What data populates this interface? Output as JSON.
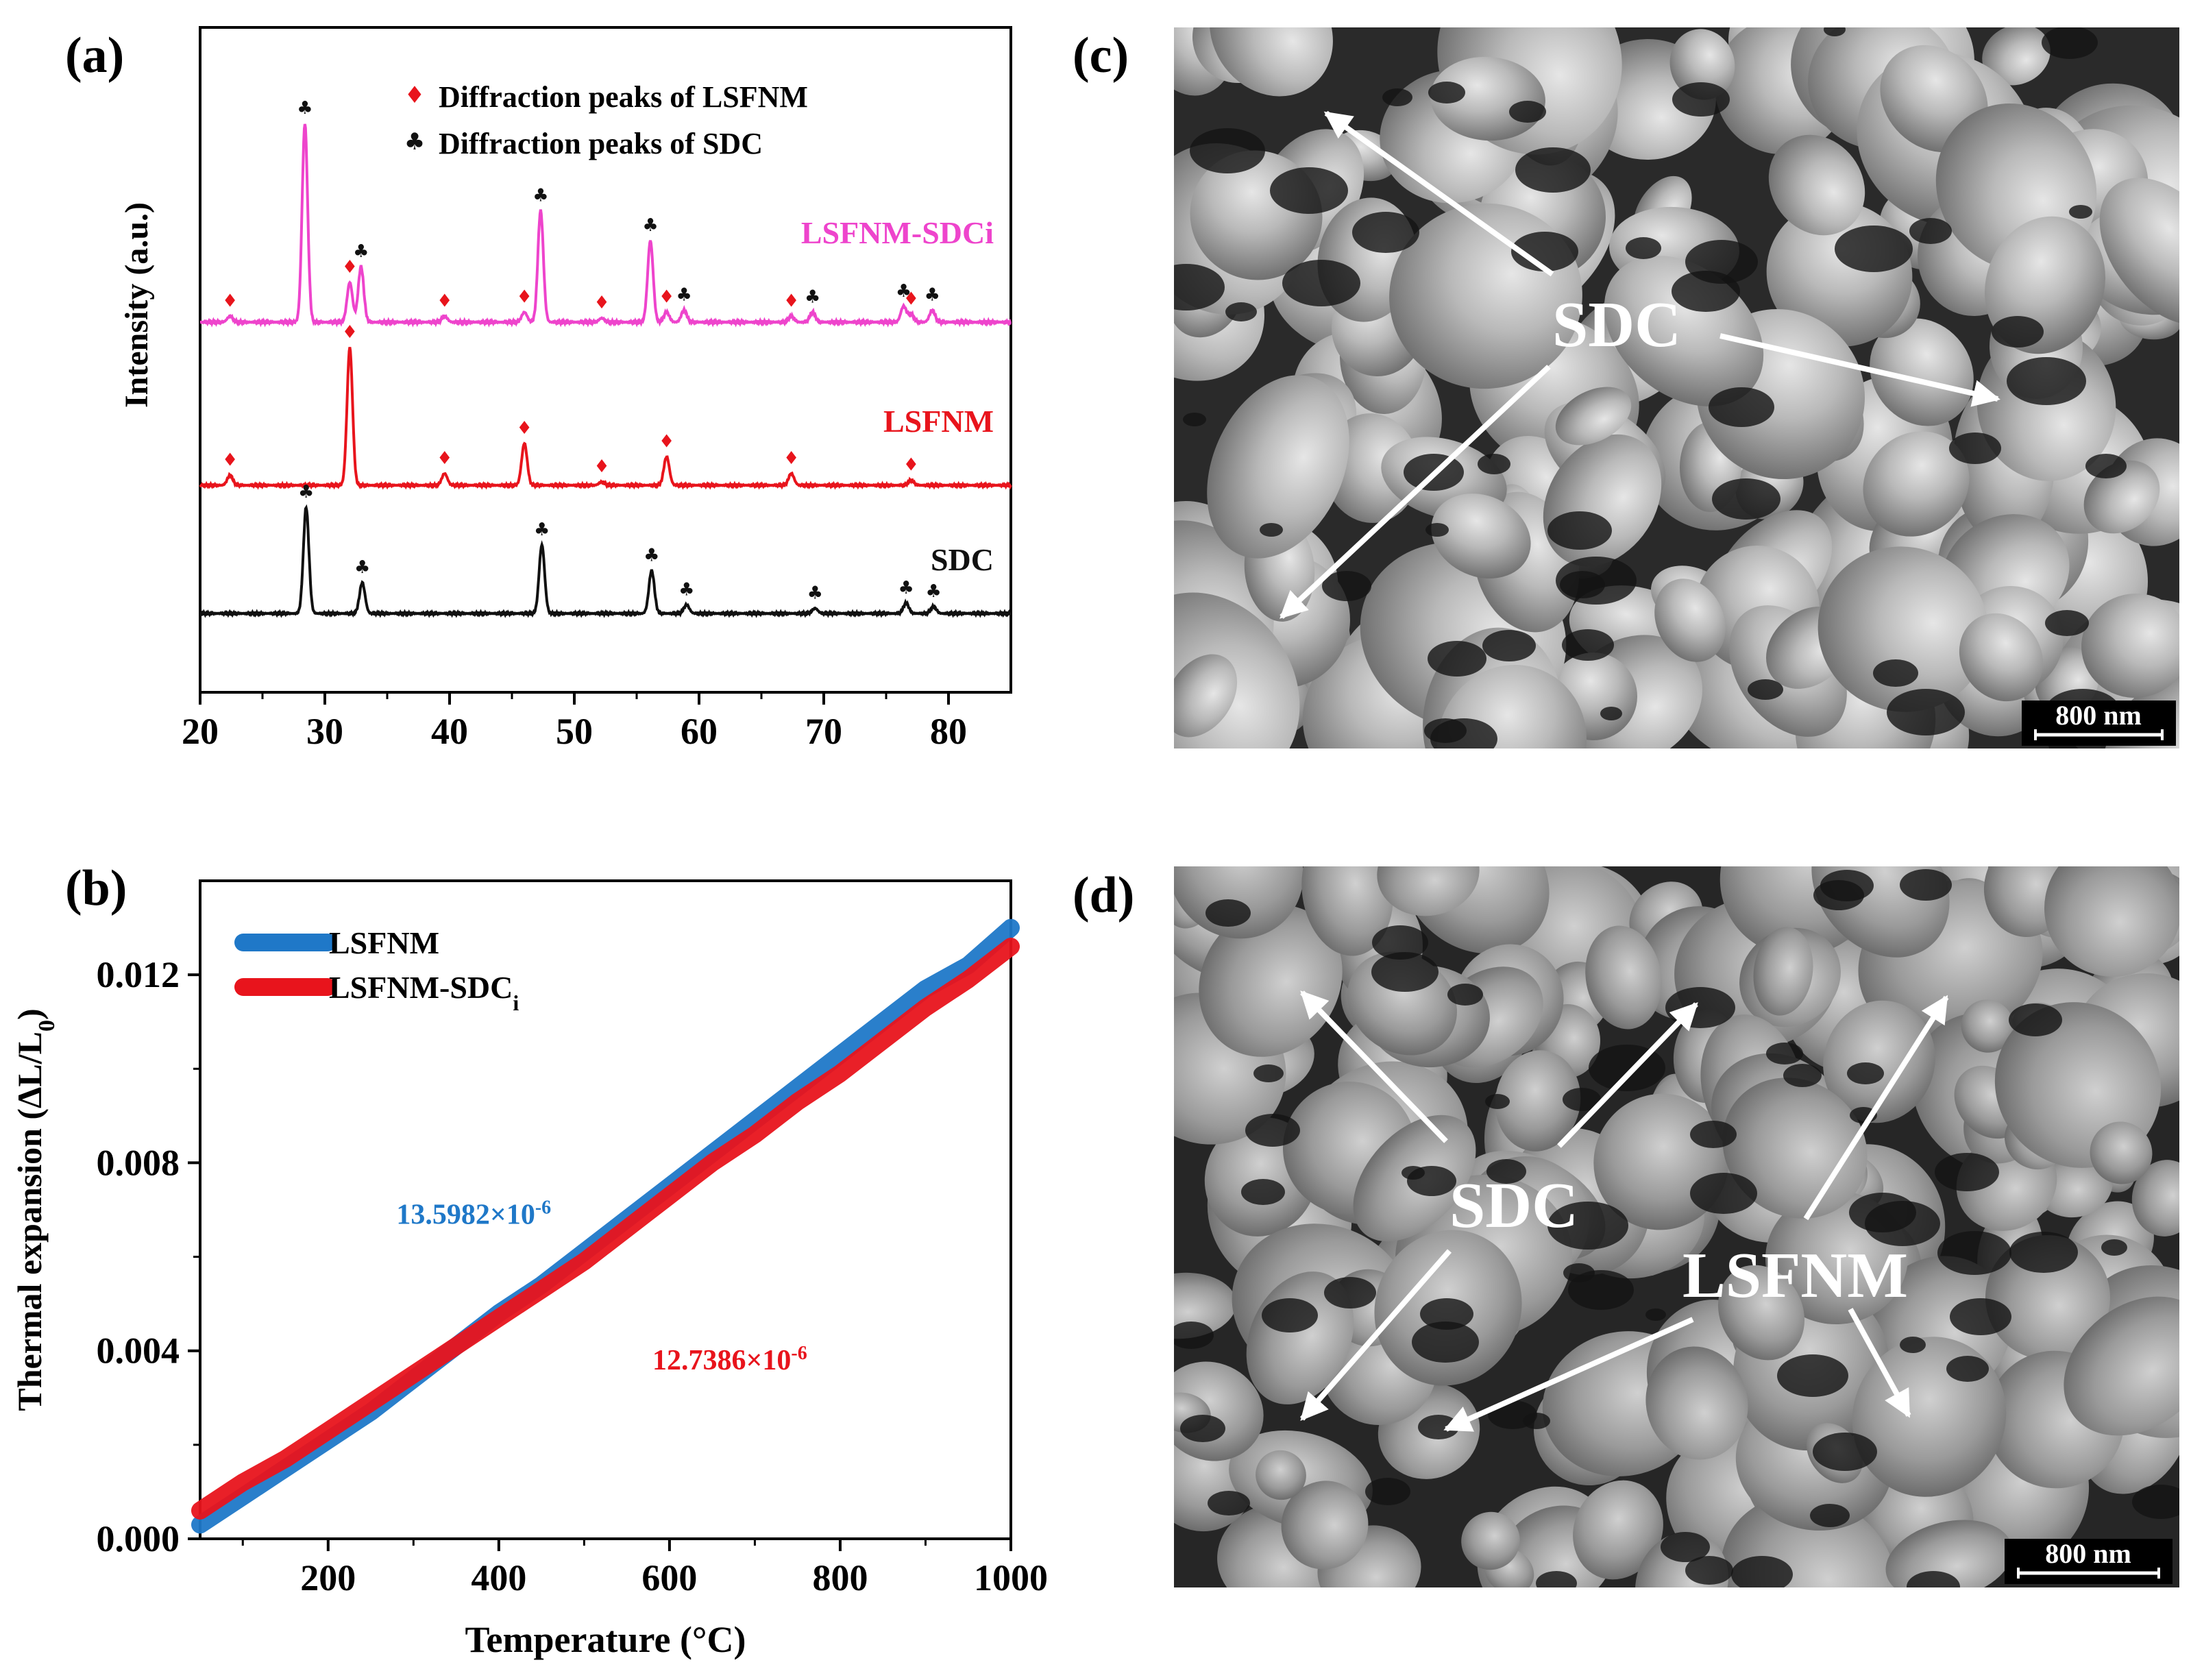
{
  "panels": {
    "a": "(a)",
    "b": "(b)",
    "c": "(c)",
    "d": "(d)"
  },
  "chart_data": [
    {
      "type": "line",
      "panel": "(a)",
      "title": "",
      "xlabel": "",
      "ylabel": "Intensity (a.u.)",
      "xlim": [
        20,
        85
      ],
      "xticks": [
        20,
        30,
        40,
        50,
        60,
        70,
        80
      ],
      "legend": [
        {
          "label": "Diffraction peaks of LSFNM",
          "marker": "♦",
          "color": "#e8141c"
        },
        {
          "label": "Diffraction peaks of SDC",
          "marker": "♣",
          "color": "#111111"
        }
      ],
      "series": [
        {
          "name": "LSFNM-SDCi",
          "color": "#ee44cc",
          "peaks": [
            {
              "x": 22.4,
              "h": 0.03
            },
            {
              "x": 28.4,
              "h": 1.0
            },
            {
              "x": 32.0,
              "h": 0.2
            },
            {
              "x": 32.9,
              "h": 0.28
            },
            {
              "x": 39.6,
              "h": 0.03
            },
            {
              "x": 46.0,
              "h": 0.05
            },
            {
              "x": 47.3,
              "h": 0.56
            },
            {
              "x": 52.2,
              "h": 0.02
            },
            {
              "x": 56.1,
              "h": 0.41
            },
            {
              "x": 57.4,
              "h": 0.05
            },
            {
              "x": 58.8,
              "h": 0.06
            },
            {
              "x": 67.4,
              "h": 0.03
            },
            {
              "x": 69.1,
              "h": 0.05
            },
            {
              "x": 76.4,
              "h": 0.08
            },
            {
              "x": 77.0,
              "h": 0.04
            },
            {
              "x": 78.7,
              "h": 0.06
            }
          ],
          "markers": [
            {
              "x": 22.4,
              "type": "LSFNM"
            },
            {
              "x": 28.4,
              "type": "SDC"
            },
            {
              "x": 32.0,
              "type": "LSFNM"
            },
            {
              "x": 32.9,
              "type": "SDC"
            },
            {
              "x": 39.6,
              "type": "LSFNM"
            },
            {
              "x": 46.0,
              "type": "LSFNM"
            },
            {
              "x": 47.3,
              "type": "SDC"
            },
            {
              "x": 52.2,
              "type": "LSFNM"
            },
            {
              "x": 56.1,
              "type": "SDC"
            },
            {
              "x": 57.4,
              "type": "LSFNM"
            },
            {
              "x": 58.8,
              "type": "SDC"
            },
            {
              "x": 67.4,
              "type": "LSFNM"
            },
            {
              "x": 69.1,
              "type": "SDC"
            },
            {
              "x": 76.4,
              "type": "SDC"
            },
            {
              "x": 77.0,
              "type": "LSFNM"
            },
            {
              "x": 78.7,
              "type": "SDC"
            }
          ]
        },
        {
          "name": "LSFNM",
          "color": "#e8141c",
          "peaks": [
            {
              "x": 22.4,
              "h": 0.06
            },
            {
              "x": 32.0,
              "h": 0.82
            },
            {
              "x": 39.6,
              "h": 0.07
            },
            {
              "x": 46.0,
              "h": 0.25
            },
            {
              "x": 52.2,
              "h": 0.02
            },
            {
              "x": 57.4,
              "h": 0.17
            },
            {
              "x": 67.4,
              "h": 0.07
            },
            {
              "x": 77.0,
              "h": 0.03
            }
          ],
          "markers": [
            {
              "x": 22.4,
              "type": "LSFNM"
            },
            {
              "x": 32.0,
              "type": "LSFNM"
            },
            {
              "x": 39.6,
              "type": "LSFNM"
            },
            {
              "x": 46.0,
              "type": "LSFNM"
            },
            {
              "x": 52.2,
              "type": "LSFNM"
            },
            {
              "x": 57.4,
              "type": "LSFNM"
            },
            {
              "x": 67.4,
              "type": "LSFNM"
            },
            {
              "x": 77.0,
              "type": "LSFNM"
            }
          ]
        },
        {
          "name": "SDC",
          "color": "#111111",
          "peaks": [
            {
              "x": 28.5,
              "h": 0.62
            },
            {
              "x": 33.0,
              "h": 0.18
            },
            {
              "x": 47.4,
              "h": 0.4
            },
            {
              "x": 56.2,
              "h": 0.25
            },
            {
              "x": 59.0,
              "h": 0.05
            },
            {
              "x": 69.3,
              "h": 0.03
            },
            {
              "x": 76.6,
              "h": 0.06
            },
            {
              "x": 78.8,
              "h": 0.04
            }
          ],
          "markers": [
            {
              "x": 28.5,
              "type": "SDC"
            },
            {
              "x": 33.0,
              "type": "SDC"
            },
            {
              "x": 47.4,
              "type": "SDC"
            },
            {
              "x": 56.2,
              "type": "SDC"
            },
            {
              "x": 59.0,
              "type": "SDC"
            },
            {
              "x": 69.3,
              "type": "SDC"
            },
            {
              "x": 76.6,
              "type": "SDC"
            },
            {
              "x": 78.8,
              "type": "SDC"
            }
          ]
        }
      ]
    },
    {
      "type": "line",
      "panel": "(b)",
      "title": "",
      "xlabel": "Temperature (°C)",
      "ylabel": "Thermal expansion (ΔL/L",
      "ylabel_sub": "0",
      "ylabel_end": ")",
      "xlim": [
        50,
        1000
      ],
      "ylim": [
        0,
        0.014
      ],
      "xticks": [
        200,
        400,
        600,
        800,
        1000
      ],
      "yticks": [
        0.0,
        0.004,
        0.008,
        0.012
      ],
      "ytick_labels": [
        "0.000",
        "0.004",
        "0.008",
        "0.012"
      ],
      "series": [
        {
          "name": "LSFNM",
          "legend": "LSFNM",
          "legend_sub": "",
          "color": "#1f78c8",
          "x": [
            50,
            100,
            150,
            200,
            250,
            300,
            350,
            400,
            450,
            500,
            550,
            600,
            650,
            700,
            750,
            800,
            850,
            900,
            950,
            1000
          ],
          "y": [
            0.0003,
            0.0009,
            0.0015,
            0.0021,
            0.0027,
            0.0034,
            0.0041,
            0.0048,
            0.0054,
            0.0061,
            0.0068,
            0.0075,
            0.0082,
            0.0089,
            0.0096,
            0.0103,
            0.011,
            0.0117,
            0.0122,
            0.013
          ]
        },
        {
          "name": "LSFNM-SDCi",
          "legend": "LSFNM-SDC",
          "legend_sub": "i",
          "color": "#e8141c",
          "x": [
            50,
            100,
            150,
            200,
            250,
            300,
            350,
            400,
            450,
            500,
            550,
            600,
            650,
            700,
            750,
            800,
            850,
            900,
            950,
            1000
          ],
          "y": [
            0.0006,
            0.0012,
            0.0017,
            0.0023,
            0.0029,
            0.0035,
            0.0041,
            0.0047,
            0.0053,
            0.0059,
            0.0066,
            0.0073,
            0.008,
            0.0086,
            0.0093,
            0.0099,
            0.0106,
            0.0113,
            0.0119,
            0.0126
          ]
        }
      ],
      "annotations": [
        {
          "text": "13.5982×10",
          "sup": "-6",
          "color": "#1f78c8",
          "at": [
            280,
            0.0067
          ]
        },
        {
          "text": "12.7386×10",
          "sup": "-6",
          "color": "#e8141c",
          "at": [
            580,
            0.0036
          ]
        }
      ]
    }
  ],
  "sem_c": {
    "labels": [
      "SDC"
    ],
    "scale_bar": "800 nm"
  },
  "sem_d": {
    "labels": [
      "SDC",
      "LSFNM"
    ],
    "scale_bar": "800 nm"
  }
}
